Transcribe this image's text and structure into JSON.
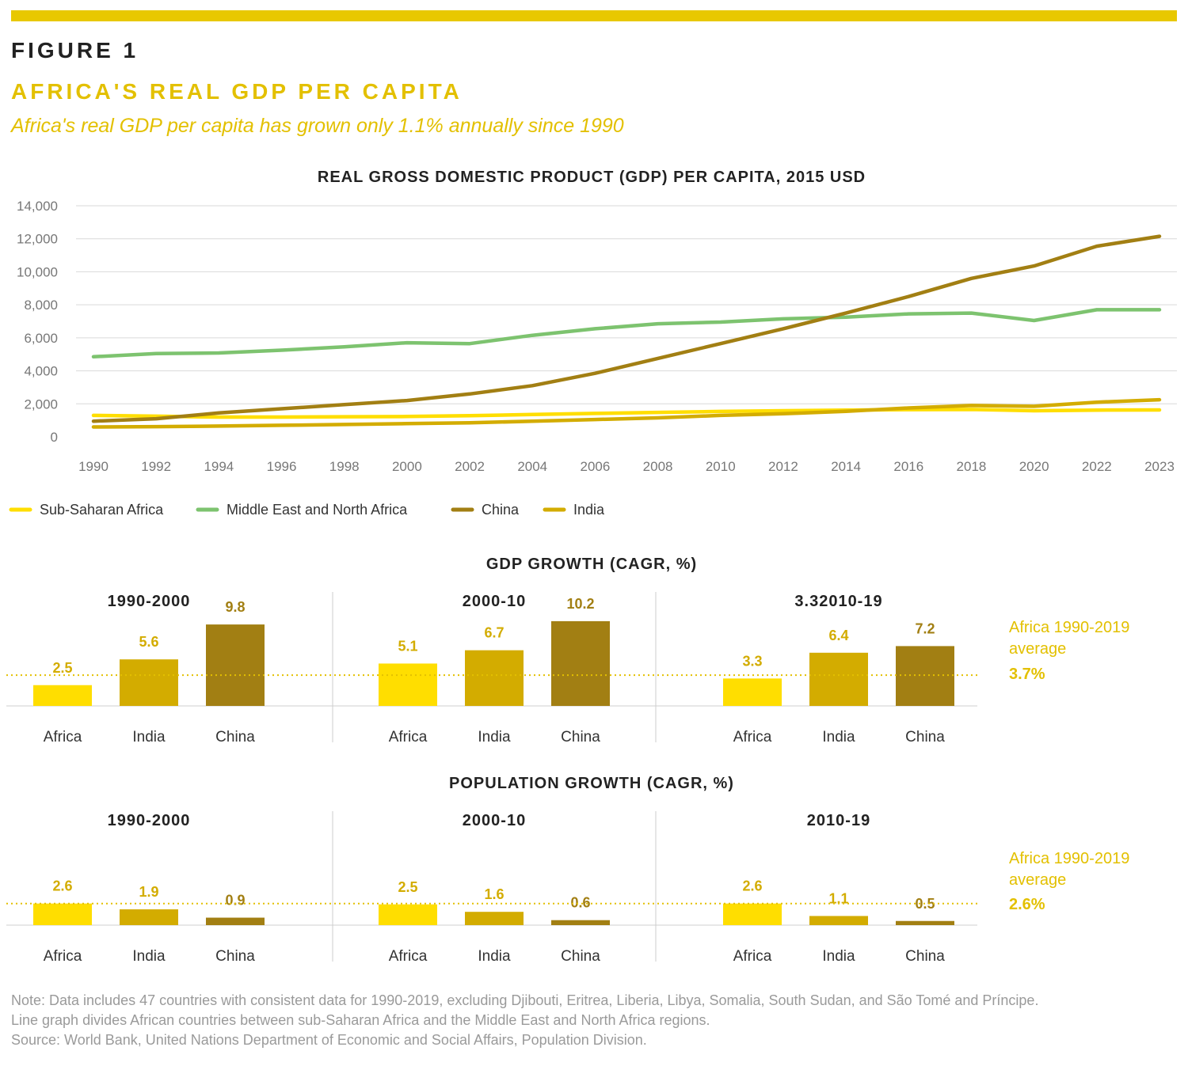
{
  "figure": {
    "label": "FIGURE 1",
    "title": "AFRICA'S REAL GDP PER CAPITA",
    "subtitle": "Africa's real GDP per capita has grown only 1.1% annually since 1990"
  },
  "colors": {
    "accent": "#E8C800",
    "ssa": "#FFDE00",
    "mena": "#7DC36F",
    "china": "#A27F13",
    "india": "#D3AC00",
    "africa_bar": "#FFDE00",
    "india_bar": "#D3AC00",
    "china_bar": "#A27F13",
    "avg_text": "#E3C000"
  },
  "notes": {
    "line1": "Note: Data includes 47 countries with consistent data for 1990-2019, excluding Djibouti, Eritrea, Liberia, Libya, Somalia, South Sudan, and São Tomé and Príncipe.",
    "line2": "Line graph divides African countries between sub-Saharan Africa and the Middle East and North Africa regions.",
    "line3": "Source: World Bank, United Nations Department of Economic and Social Affairs, Population Division."
  },
  "chart_data": [
    {
      "type": "line",
      "title": "REAL GROSS DOMESTIC PRODUCT (GDP) PER CAPITA, 2015 USD",
      "x": [
        "1990",
        "1992",
        "1994",
        "1996",
        "1998",
        "2000",
        "2002",
        "2004",
        "2006",
        "2008",
        "2010",
        "2012",
        "2014",
        "2016",
        "2018",
        "2020",
        "2022",
        "2023"
      ],
      "ylim": [
        0,
        14000
      ],
      "yticks": [
        0,
        2000,
        4000,
        6000,
        8000,
        10000,
        12000,
        14000
      ],
      "ytick_labels": [
        "0",
        "2,000",
        "4,000",
        "6,000",
        "8,000",
        "10,000",
        "12,000",
        "14,000"
      ],
      "grid": true,
      "legend": "bottom-left",
      "series": [
        {
          "name": "Sub-Saharan Africa",
          "color_key": "ssa",
          "values": [
            1300,
            1250,
            1200,
            1200,
            1220,
            1230,
            1280,
            1350,
            1420,
            1480,
            1540,
            1580,
            1620,
            1650,
            1660,
            1580,
            1620,
            1630
          ]
        },
        {
          "name": "Middle East and North Africa",
          "color_key": "mena",
          "values": [
            4850,
            5050,
            5080,
            5250,
            5450,
            5700,
            5650,
            6150,
            6550,
            6850,
            6950,
            7150,
            7250,
            7450,
            7500,
            7050,
            7700,
            7700
          ]
        },
        {
          "name": "China",
          "color_key": "china",
          "values": [
            950,
            1100,
            1450,
            1700,
            1950,
            2200,
            2600,
            3100,
            3850,
            4750,
            5650,
            6550,
            7500,
            8500,
            9600,
            10350,
            11550,
            12150
          ]
        },
        {
          "name": "India",
          "color_key": "india",
          "values": [
            600,
            620,
            650,
            700,
            750,
            800,
            850,
            950,
            1050,
            1150,
            1300,
            1400,
            1550,
            1750,
            1900,
            1850,
            2100,
            2250
          ]
        }
      ]
    },
    {
      "type": "bar",
      "title": "GDP GROWTH (CAGR, %)",
      "categories": [
        "Africa",
        "India",
        "China"
      ],
      "panels": [
        {
          "label": "1990-2000",
          "values": [
            2.5,
            5.6,
            9.8
          ],
          "value_labels": [
            "2.5",
            "5.6",
            "9.8"
          ]
        },
        {
          "label": "2000-10",
          "values": [
            5.1,
            6.7,
            10.2
          ],
          "value_labels": [
            "5.1",
            "6.7",
            "10.2"
          ]
        },
        {
          "label": "3.32010-19",
          "values": [
            3.3,
            6.4,
            7.2
          ],
          "value_labels": [
            "3.3",
            "6.4",
            "7.2"
          ]
        }
      ],
      "average": {
        "value": 3.7,
        "label_line1": "Africa 1990-2019",
        "label_line2": "average",
        "value_label": "3.7%"
      }
    },
    {
      "type": "bar",
      "title": "POPULATION GROWTH (CAGR, %)",
      "categories": [
        "Africa",
        "India",
        "China"
      ],
      "panels": [
        {
          "label": "1990-2000",
          "values": [
            2.6,
            1.9,
            0.9
          ],
          "value_labels": [
            "2.6",
            "1.9",
            "0.9"
          ]
        },
        {
          "label": "2000-10",
          "values": [
            2.5,
            1.6,
            0.6
          ],
          "value_labels": [
            "2.5",
            "1.6",
            "0.6"
          ]
        },
        {
          "label": "2010-19",
          "values": [
            2.6,
            1.1,
            0.5
          ],
          "value_labels": [
            "2.6",
            "1.1",
            "0.5"
          ]
        }
      ],
      "average": {
        "value": 2.6,
        "label_line1": "Africa 1990-2019",
        "label_line2": "average",
        "value_label": "2.6%"
      }
    }
  ]
}
